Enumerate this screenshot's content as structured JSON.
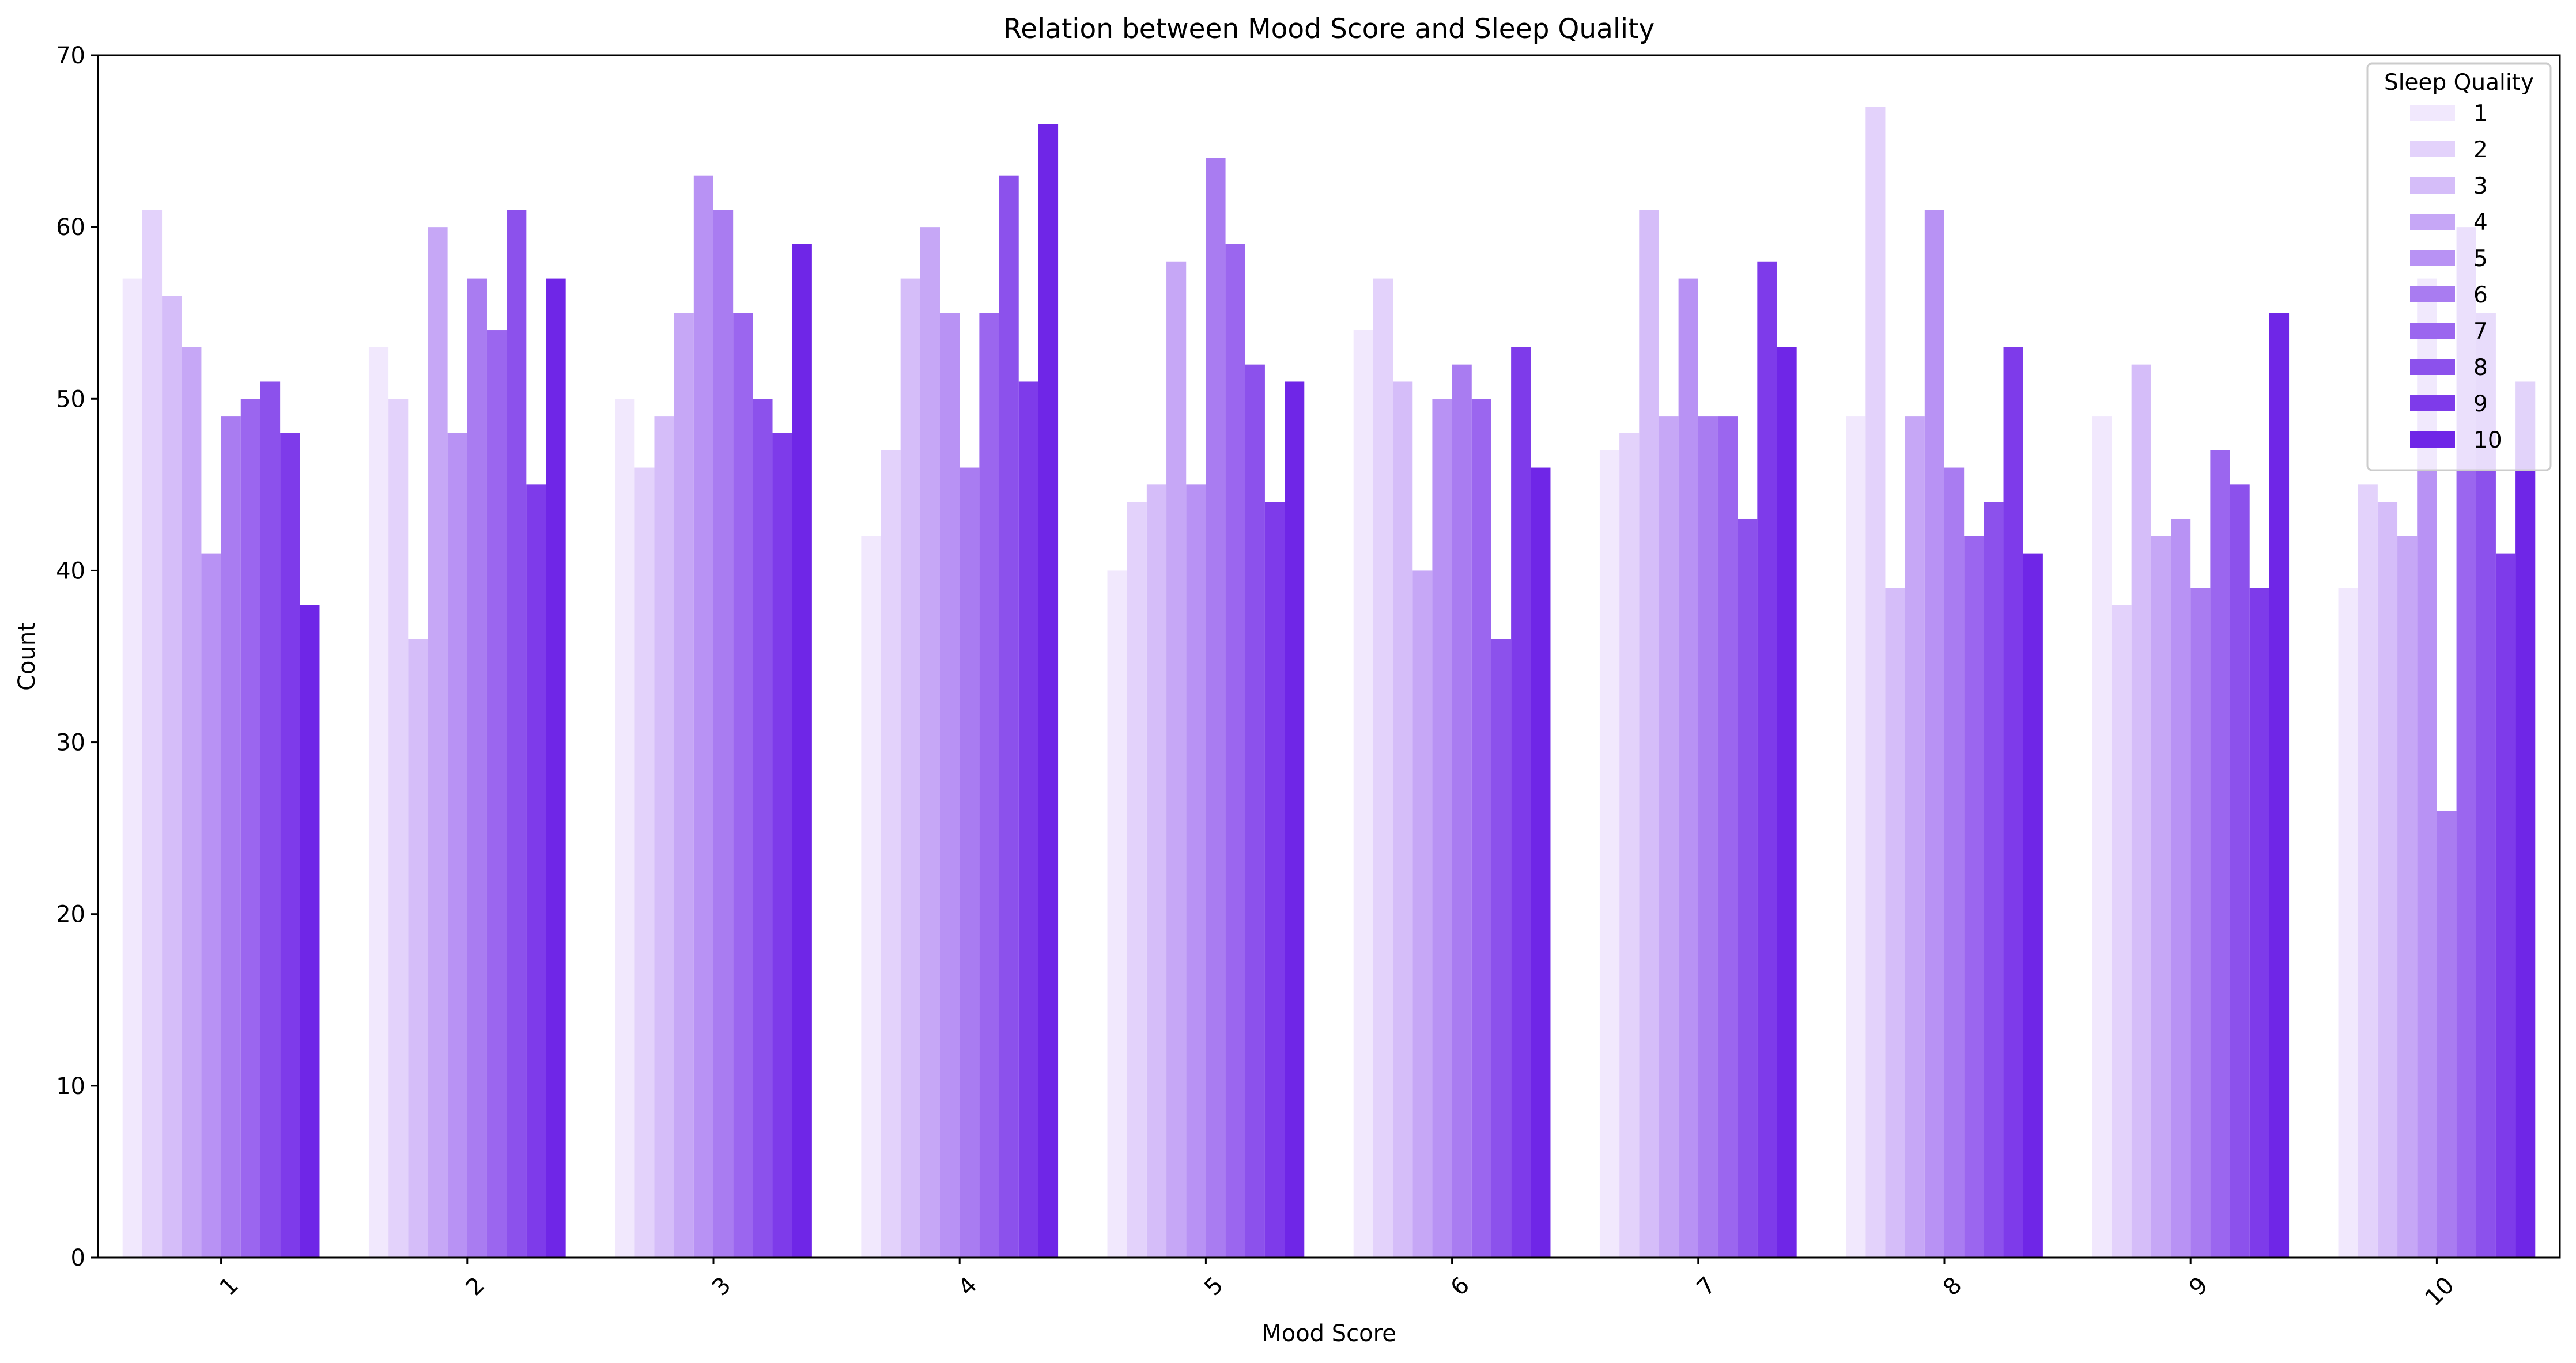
{
  "chart_data": {
    "type": "bar",
    "title": "Relation between Mood Score and Sleep Quality",
    "xlabel": "Mood Score",
    "ylabel": "Count",
    "ylim": [
      0,
      70
    ],
    "yticks": [
      0,
      10,
      20,
      30,
      40,
      50,
      60,
      70
    ],
    "categories": [
      "1",
      "2",
      "3",
      "4",
      "5",
      "6",
      "7",
      "8",
      "9",
      "10"
    ],
    "legend": {
      "title": "Sleep Quality",
      "placement": "top-right"
    },
    "grid": false,
    "series": [
      {
        "name": "1",
        "color": "#f1e8fd",
        "values": [
          57,
          53,
          50,
          42,
          40,
          54,
          47,
          49,
          49,
          39
        ]
      },
      {
        "name": "2",
        "color": "#e3d2fb",
        "values": [
          61,
          50,
          46,
          47,
          44,
          57,
          48,
          67,
          38,
          45
        ]
      },
      {
        "name": "3",
        "color": "#d5bdf9",
        "values": [
          56,
          36,
          49,
          57,
          45,
          51,
          61,
          39,
          52,
          44
        ]
      },
      {
        "name": "4",
        "color": "#c6a7f6",
        "values": [
          53,
          60,
          55,
          60,
          58,
          40,
          49,
          49,
          42,
          42
        ]
      },
      {
        "name": "5",
        "color": "#b892f4",
        "values": [
          41,
          48,
          63,
          55,
          45,
          50,
          57,
          61,
          43,
          57
        ]
      },
      {
        "name": "6",
        "color": "#a97cf1",
        "values": [
          49,
          57,
          61,
          46,
          64,
          52,
          49,
          46,
          39,
          26
        ]
      },
      {
        "name": "7",
        "color": "#9b66ef",
        "values": [
          50,
          54,
          55,
          55,
          59,
          50,
          49,
          42,
          47,
          60
        ]
      },
      {
        "name": "8",
        "color": "#8c51ec",
        "values": [
          51,
          61,
          50,
          63,
          52,
          36,
          43,
          44,
          45,
          55
        ]
      },
      {
        "name": "9",
        "color": "#7e3bea",
        "values": [
          48,
          45,
          48,
          51,
          44,
          53,
          58,
          53,
          39,
          41
        ]
      },
      {
        "name": "10",
        "color": "#6f26e7",
        "values": [
          38,
          57,
          59,
          66,
          51,
          46,
          53,
          41,
          55,
          51
        ]
      }
    ]
  }
}
